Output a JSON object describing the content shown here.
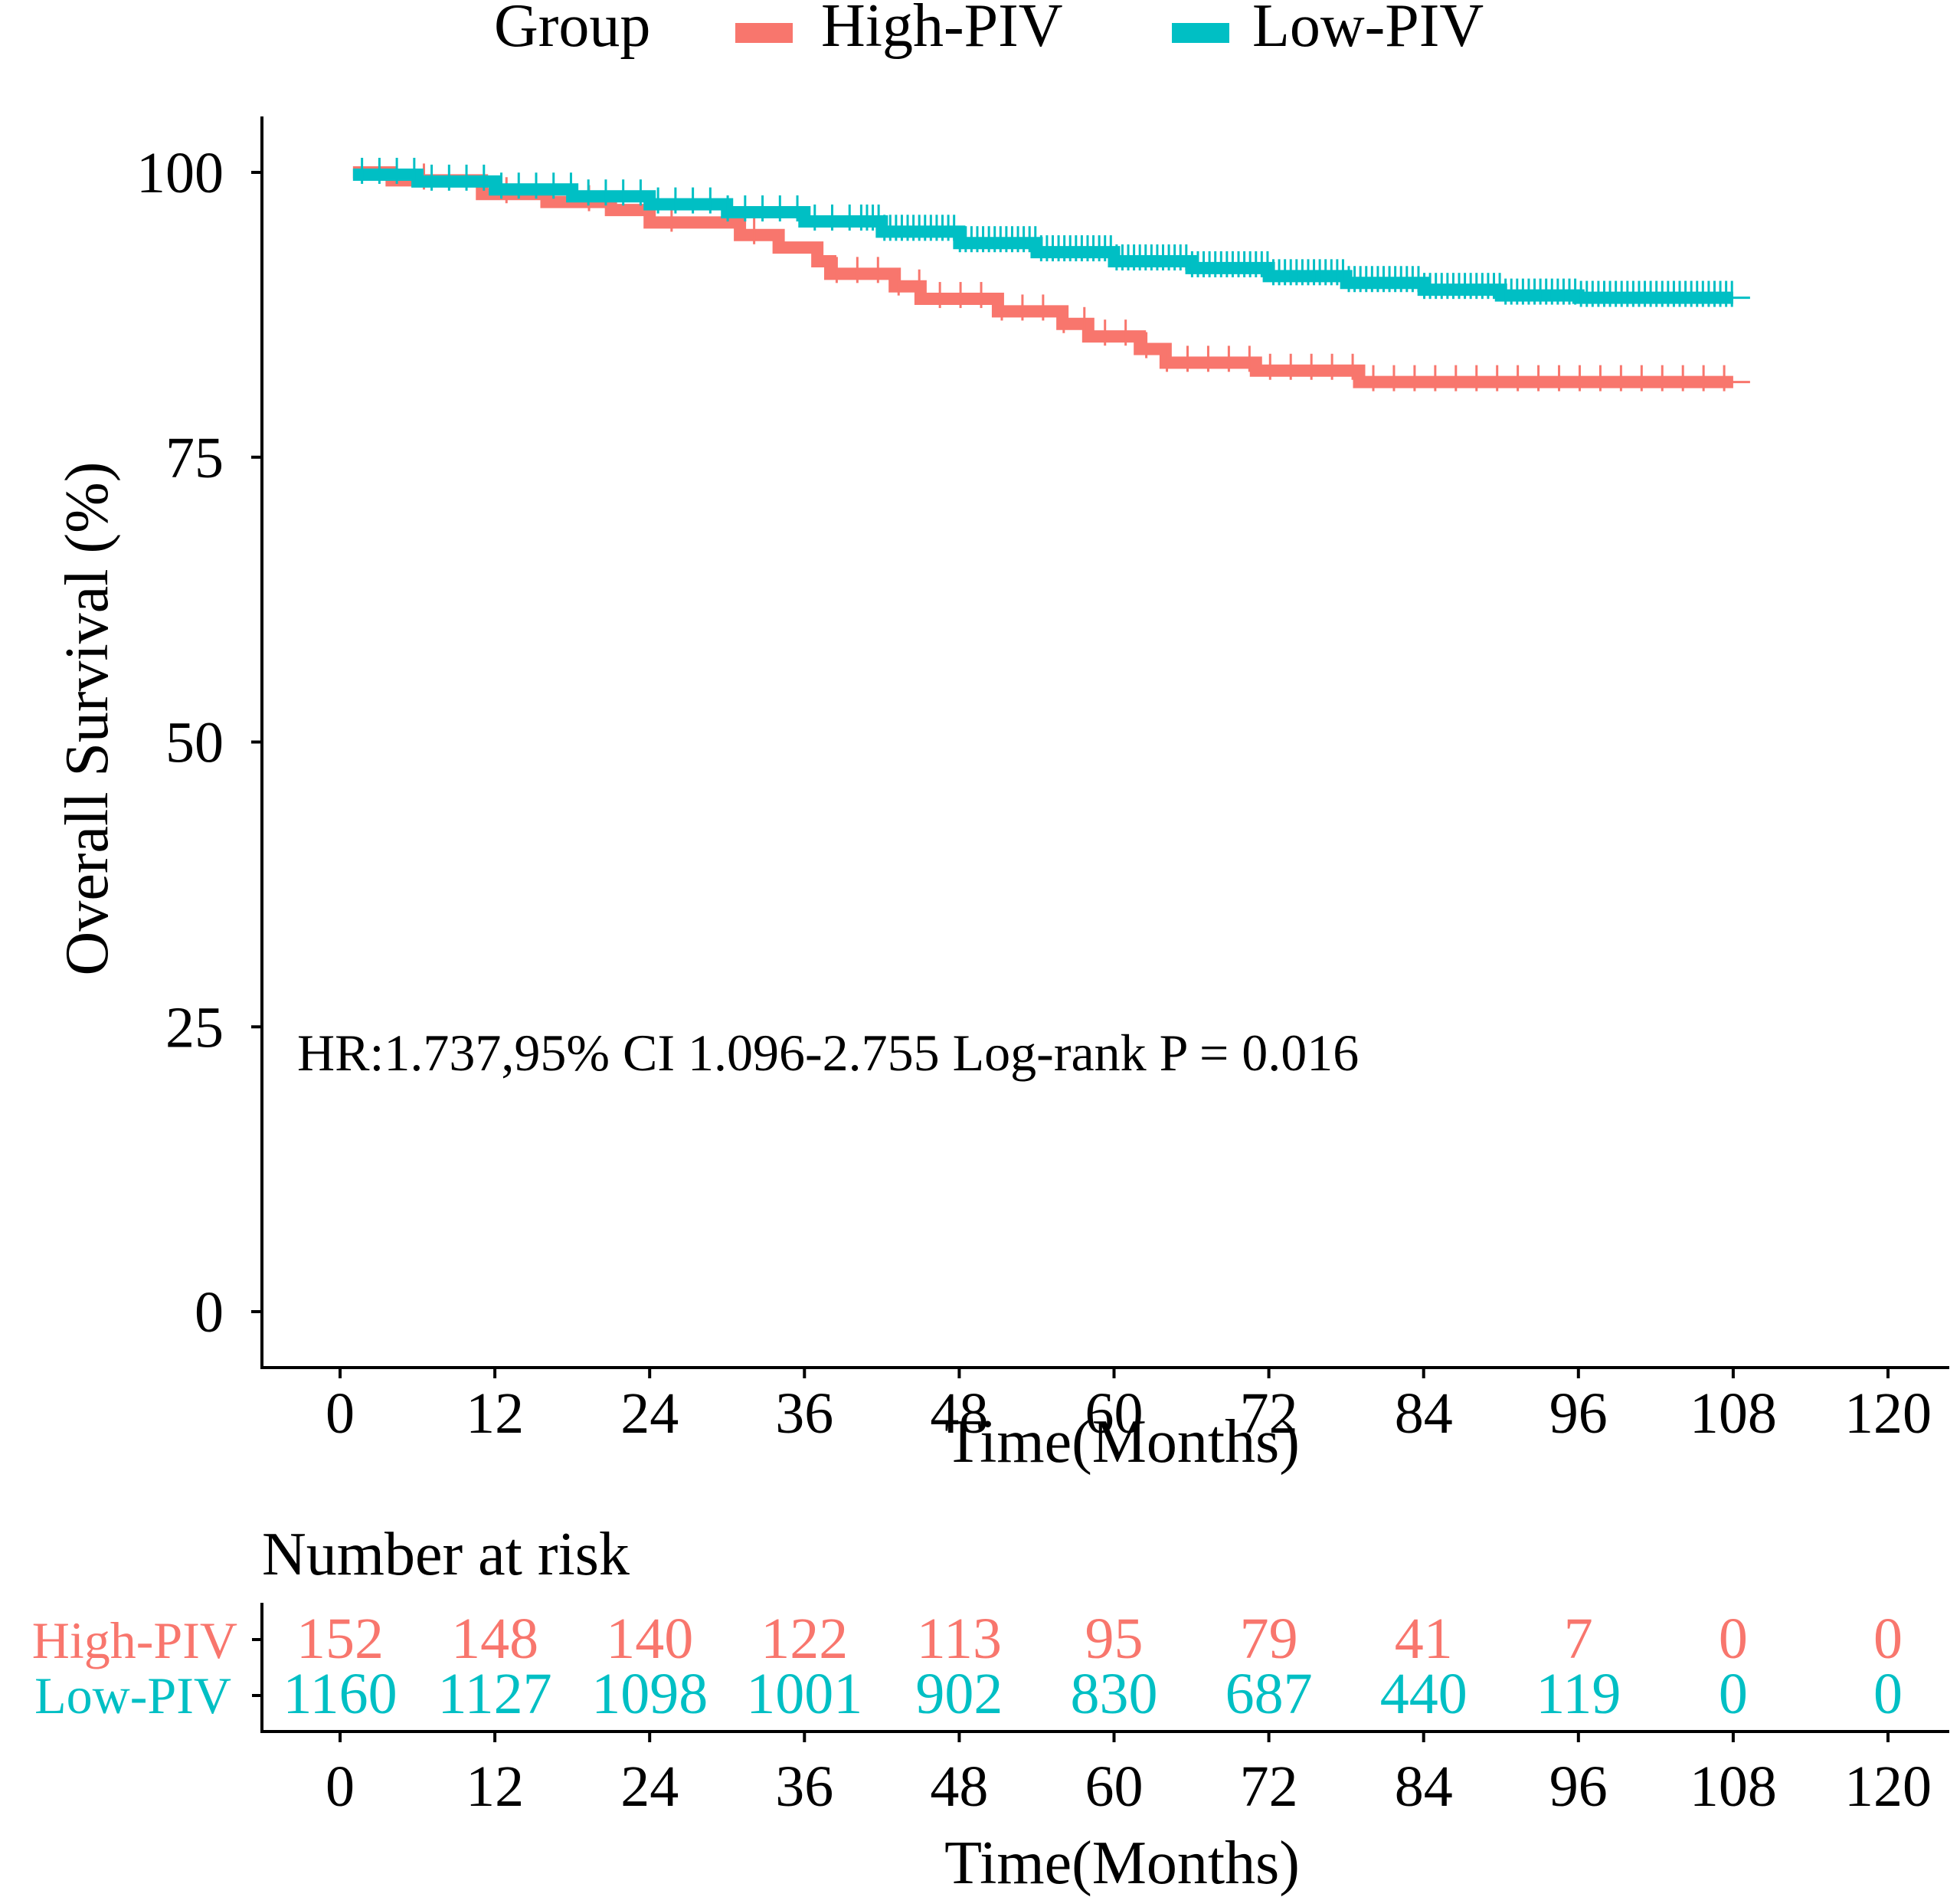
{
  "chart_data": {
    "type": "line",
    "subtype": "kaplan-meier",
    "legend": {
      "title": "Group",
      "entries": [
        {
          "name": "High-PIV",
          "color": "#F8766D"
        },
        {
          "name": "Low-PIV",
          "color": "#00BFC4"
        }
      ],
      "placement": "top"
    },
    "ylabel": "Overall Survival  (%)",
    "xlabel": "Time(Months)",
    "ylim": [
      0,
      100
    ],
    "xlim": [
      0,
      120
    ],
    "y_ticks": [
      "0",
      "25",
      "50",
      "75",
      "100"
    ],
    "x_ticks": [
      "0",
      "12",
      "24",
      "36",
      "48",
      "60",
      "72",
      "84",
      "96",
      "108",
      "120"
    ],
    "annotation": "HR:1.737,95% CI 1.096-2.755 Log-rank P = 0.016",
    "series": [
      {
        "name": "High-PIV",
        "color": "#F8766D",
        "x": [
          1,
          4,
          11,
          16,
          21,
          24,
          31,
          34,
          37,
          38,
          43,
          45,
          51,
          56,
          58,
          62,
          64,
          71,
          79,
          108
        ],
        "y": [
          100,
          99.3,
          98.1,
          97.4,
          96.7,
          95.6,
          94.5,
          93.4,
          92.2,
          91.1,
          90.0,
          88.9,
          87.8,
          86.7,
          85.6,
          84.5,
          83.3,
          82.6,
          81.6,
          81.6
        ]
      },
      {
        "name": "Low-PIV",
        "color": "#00BFC4",
        "x": [
          1,
          6,
          12,
          18,
          24,
          30,
          36,
          42,
          48,
          54,
          60,
          66,
          72,
          78,
          84,
          90,
          96,
          108
        ],
        "y": [
          99.8,
          99.2,
          98.5,
          97.9,
          97.2,
          96.5,
          95.7,
          94.8,
          93.8,
          93.0,
          92.2,
          91.6,
          90.9,
          90.3,
          89.7,
          89.2,
          89.0,
          89.0
        ]
      }
    ],
    "risk_table": {
      "title": "Number at risk",
      "xlabel": "Time(Months)",
      "times": [
        "0",
        "12",
        "24",
        "36",
        "48",
        "60",
        "72",
        "84",
        "96",
        "108",
        "120"
      ],
      "rows": [
        {
          "name": "High-PIV",
          "color": "#F8766D",
          "values": [
            "152",
            "148",
            "140",
            "122",
            "113",
            "95",
            "79",
            "41",
            "7",
            "0",
            "0"
          ]
        },
        {
          "name": "Low-PIV",
          "color": "#00BFC4",
          "values": [
            "1160",
            "1127",
            "1098",
            "1001",
            "902",
            "830",
            "687",
            "440",
            "119",
            "0",
            "0"
          ]
        }
      ]
    }
  }
}
